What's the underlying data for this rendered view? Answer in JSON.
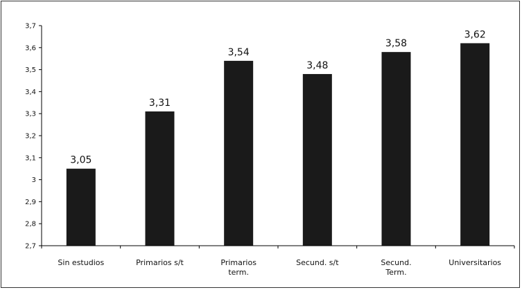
{
  "chart_data": {
    "type": "bar",
    "categories": [
      [
        "Sin estudios"
      ],
      [
        "Primarios s/t"
      ],
      [
        "Primarios",
        "term."
      ],
      [
        "Secund. s/t"
      ],
      [
        "Secund.",
        "Term."
      ],
      [
        "Universitarios"
      ]
    ],
    "values": [
      3.05,
      3.31,
      3.54,
      3.48,
      3.58,
      3.62
    ],
    "data_labels": [
      "3,05",
      "3,31",
      "3,54",
      "3,48",
      "3,58",
      "3,62"
    ],
    "y_ticks": [
      "2,7",
      "2,8",
      "2,9",
      "3",
      "3,1",
      "3,2",
      "3,3",
      "3,4",
      "3,5",
      "3,6",
      "3,7"
    ],
    "ylim": [
      2.7,
      3.7
    ],
    "grid": false,
    "legend": "none",
    "bar_color": "#1a1a1a"
  }
}
